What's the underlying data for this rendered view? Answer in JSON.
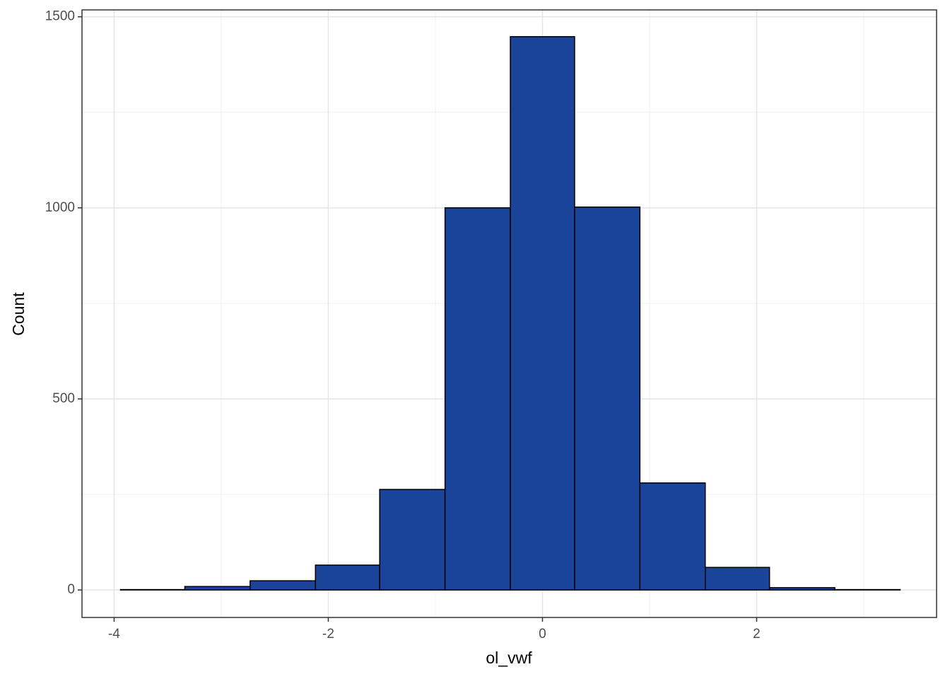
{
  "chart_data": {
    "type": "histogram",
    "xlabel": "ol_vwf",
    "ylabel": "Count",
    "bins": [
      -3.94,
      -3.34,
      -2.73,
      -2.12,
      -1.52,
      -0.91,
      -0.3,
      0.3,
      0.91,
      1.52,
      2.12,
      2.73,
      3.34
    ],
    "counts": [
      1,
      9,
      24,
      65,
      263,
      1000,
      1448,
      1002,
      280,
      59,
      6,
      1
    ],
    "color": "#1a449a",
    "edgecolor": "#000000",
    "xlim": [
      -4.3,
      3.68
    ],
    "ylim": [
      -72,
      1518
    ],
    "xticks": [
      -4,
      -2,
      0,
      2
    ],
    "yticks": [
      0,
      500,
      1000,
      1500
    ],
    "minor_xticks": [
      -3,
      -1,
      1,
      3
    ],
    "minor_yticks": [
      250,
      750,
      1250
    ],
    "grid": true
  }
}
